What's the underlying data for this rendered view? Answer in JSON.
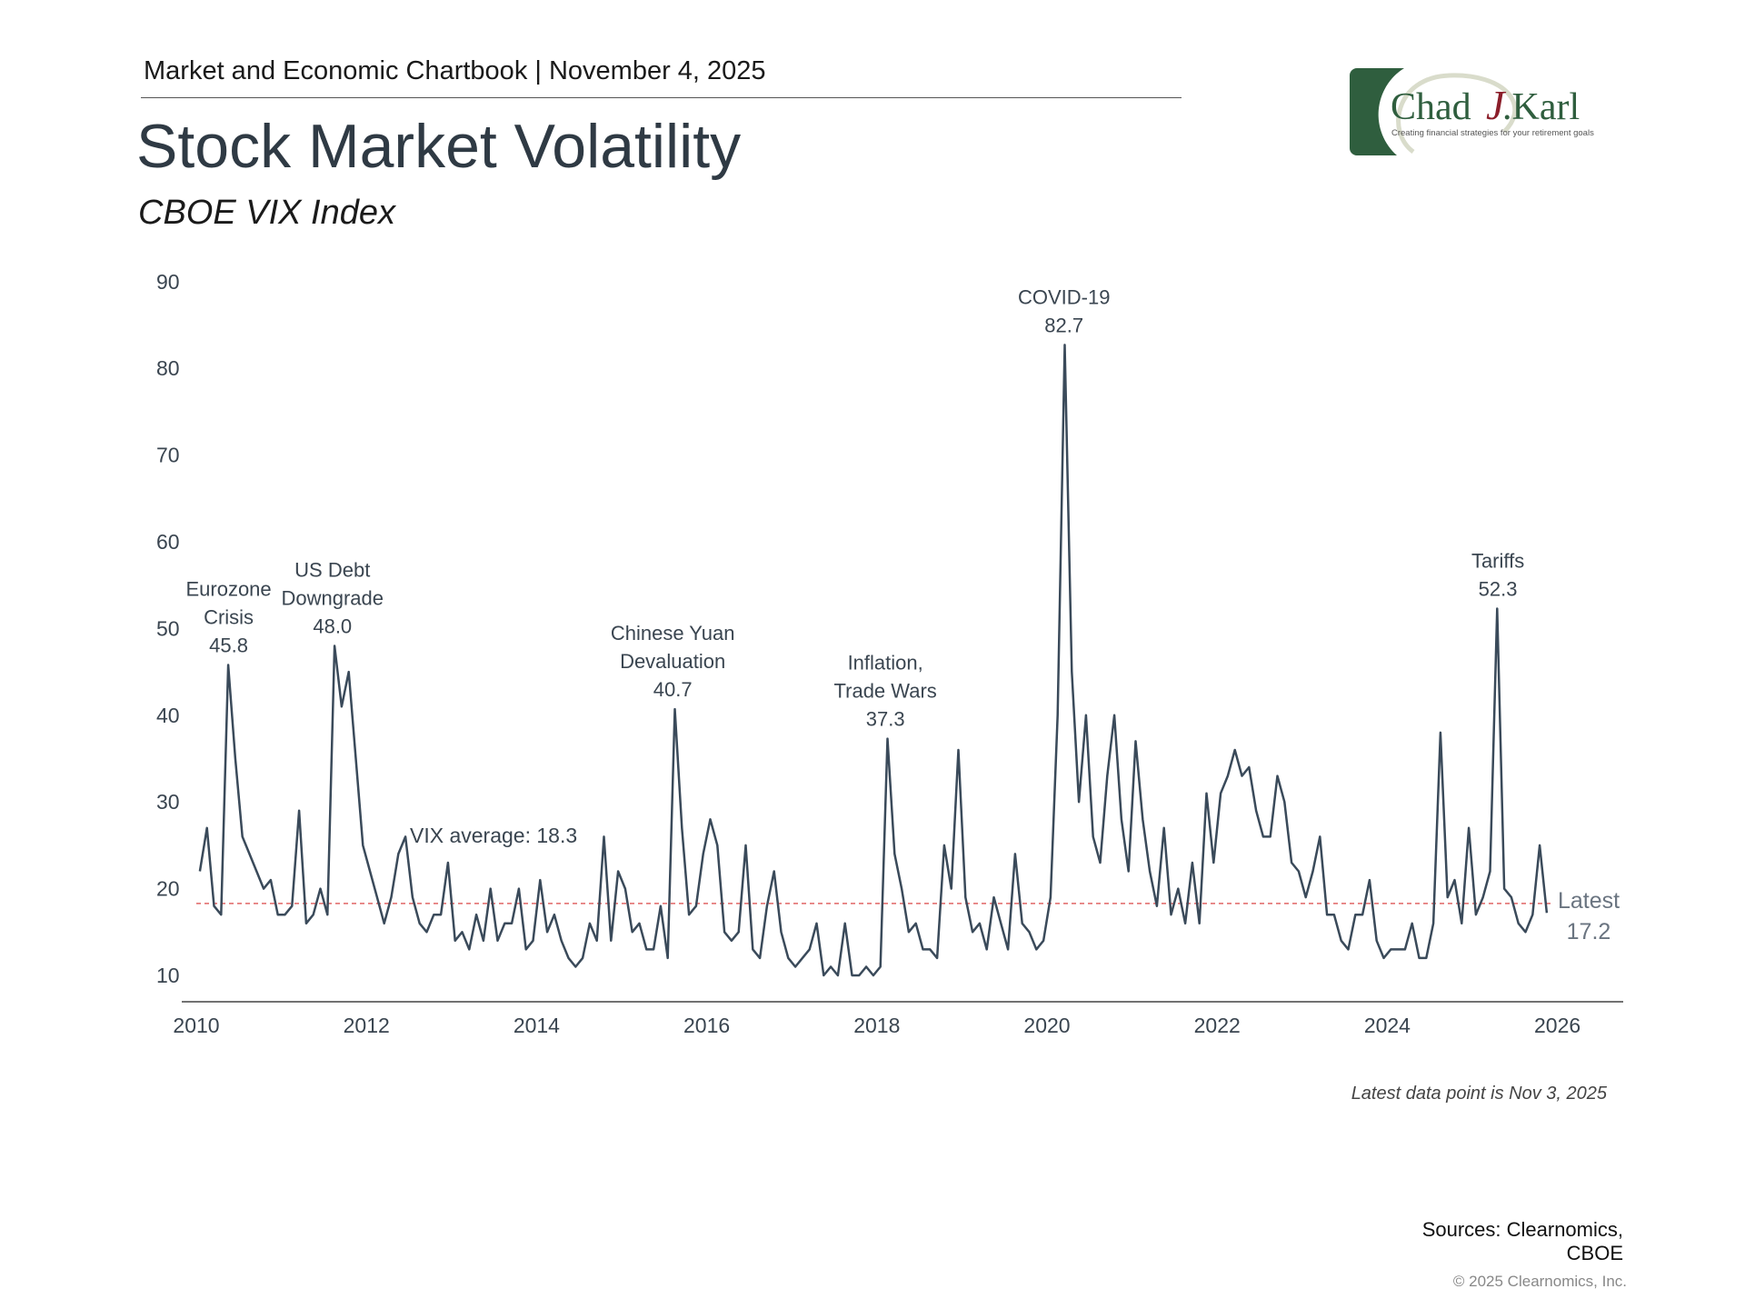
{
  "header": {
    "chartbook": "Market and Economic Chartbook | November 4, 2025",
    "title": "Stock Market Volatility",
    "subtitle": "CBOE VIX Index"
  },
  "logo": {
    "name": "Chad J.Karl",
    "tagline": "Creating financial strategies for your retirement goals",
    "colors": {
      "green": "#2f5e3e",
      "red": "#8b1e2a",
      "swirl": "#d9dccb"
    }
  },
  "footer": {
    "note": "Latest data point is Nov 3, 2025",
    "sources_line1": "Sources: Clearnomics,",
    "sources_line2": "CBOE",
    "copyright": "© 2025 Clearnomics, Inc."
  },
  "chart_data": {
    "type": "line",
    "title": "CBOE VIX Index",
    "xlabel": "",
    "ylabel": "",
    "xlim": [
      2010,
      2026
    ],
    "ylim": [
      10,
      90
    ],
    "x_ticks": [
      "2010",
      "2012",
      "2014",
      "2016",
      "2018",
      "2020",
      "2022",
      "2024",
      "2026"
    ],
    "y_ticks": [
      "10",
      "20",
      "30",
      "40",
      "50",
      "60",
      "70",
      "80",
      "90"
    ],
    "grid": false,
    "line_color": "#3a4a5a",
    "average": {
      "value": 18.3,
      "label": "VIX average: 18.3",
      "color": "#e06666",
      "style": "dashed"
    },
    "series": [
      {
        "start": "2010-01",
        "frequency": "monthly",
        "values": [
          22,
          27,
          18,
          17,
          45.8,
          35,
          26,
          24,
          22,
          20,
          21,
          17,
          17,
          18,
          29,
          16,
          17,
          20,
          17,
          48.0,
          41,
          45,
          35,
          25,
          22,
          19,
          16,
          19,
          24,
          26,
          19,
          16,
          15,
          17,
          17,
          23,
          14,
          15,
          13,
          17,
          14,
          20,
          14,
          16,
          16,
          20,
          13,
          14,
          21,
          15,
          17,
          14,
          12,
          11,
          12,
          16,
          14,
          26,
          14,
          22,
          20,
          15,
          16,
          13,
          13,
          18,
          12,
          40.7,
          27,
          17,
          18,
          24,
          28,
          25,
          15,
          14,
          15,
          25,
          13,
          12,
          18,
          22,
          15,
          12,
          11,
          12,
          13,
          16,
          10,
          11,
          10,
          16,
          10,
          10,
          11,
          10,
          11,
          37.3,
          24,
          20,
          15,
          16,
          13,
          13,
          12,
          25,
          20,
          36,
          19,
          15,
          16,
          13,
          19,
          16,
          13,
          24,
          16,
          15,
          13,
          14,
          19,
          40,
          82.7,
          45,
          30,
          40,
          26,
          23,
          33,
          40,
          28,
          22,
          37,
          28,
          22,
          18,
          27,
          17,
          20,
          16,
          23,
          16,
          31,
          23,
          31,
          33,
          36,
          33,
          34,
          29,
          26,
          26,
          33,
          30,
          23,
          22,
          19,
          22,
          26,
          17,
          17,
          14,
          13,
          17,
          17,
          21,
          14,
          12,
          13,
          13,
          13,
          16,
          12,
          12,
          16,
          38,
          19,
          21,
          16,
          27,
          17,
          19,
          22,
          52.3,
          20,
          19,
          16,
          15,
          17,
          25,
          17.2
        ]
      }
    ],
    "annotations": [
      {
        "lines": [
          "Eurozone",
          "Crisis",
          "45.8"
        ],
        "x": 2010.38,
        "y": 45.8
      },
      {
        "lines": [
          "US Debt",
          "Downgrade",
          "48.0"
        ],
        "x": 2011.6,
        "y": 48.0
      },
      {
        "lines": [
          "Chinese Yuan",
          "Devaluation",
          "40.7"
        ],
        "x": 2015.6,
        "y": 40.7
      },
      {
        "lines": [
          "Inflation,",
          "Trade Wars",
          "37.3"
        ],
        "x": 2018.1,
        "y": 37.3
      },
      {
        "lines": [
          "COVID-19",
          "82.7"
        ],
        "x": 2020.2,
        "y": 82.7
      },
      {
        "lines": [
          "Tariffs",
          "52.3"
        ],
        "x": 2025.3,
        "y": 52.3
      }
    ],
    "latest": {
      "label": "Latest",
      "value": "17.2"
    }
  }
}
